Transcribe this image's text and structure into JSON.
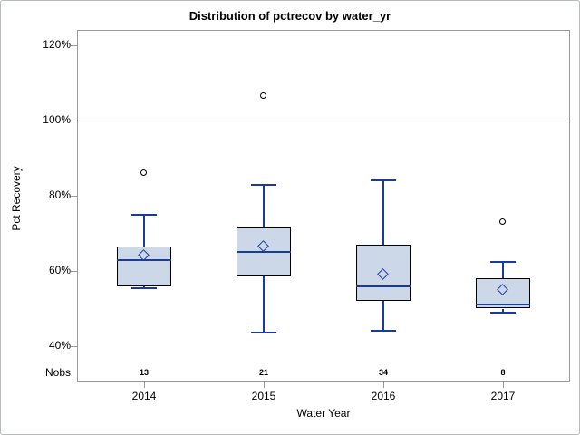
{
  "chart_data": {
    "type": "boxplot",
    "title": "Distribution of pctrecov by water_yr",
    "xlabel": "Water Year",
    "ylabel": "Pct Recovery",
    "nobs_header": "Nobs",
    "y_axis": {
      "unit": "%",
      "tick_values": [
        120,
        100,
        80,
        60,
        40
      ],
      "tick_labels": [
        "120%",
        "100%",
        "80%",
        "60%",
        "40%"
      ],
      "grid": false,
      "refline_value": 100
    },
    "categories": [
      "2014",
      "2015",
      "2016",
      "2017"
    ],
    "groups": [
      {
        "category": "2014",
        "nobs": "13",
        "whisker_low": 55.5,
        "q1": 56,
        "median": 63,
        "q3": 66.5,
        "whisker_high": 75,
        "mean": 64,
        "outliers": [
          86
        ]
      },
      {
        "category": "2015",
        "nobs": "21",
        "whisker_low": 43.5,
        "q1": 58.5,
        "median": 65,
        "q3": 71.5,
        "whisker_high": 83,
        "mean": 66.5,
        "outliers": [
          106.5
        ]
      },
      {
        "category": "2016",
        "nobs": "34",
        "whisker_low": 44,
        "q1": 52,
        "median": 56,
        "q3": 67,
        "whisker_high": 84,
        "mean": 59,
        "outliers": []
      },
      {
        "category": "2017",
        "nobs": "8",
        "whisker_low": 49,
        "q1": 50,
        "median": 51,
        "q3": 58,
        "whisker_high": 62.5,
        "mean": 55,
        "outliers": [
          73
        ]
      }
    ],
    "colors": {
      "box_fill": "#ccd7e8",
      "box_border": "#000000",
      "line": "#1a3b9e",
      "axis": "#999999",
      "refline": "#a8a8a8",
      "outlier": "#000000"
    }
  }
}
